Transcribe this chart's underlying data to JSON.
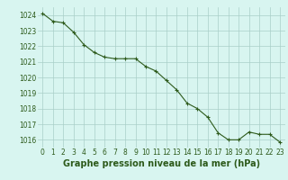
{
  "x": [
    0,
    1,
    2,
    3,
    4,
    5,
    6,
    7,
    8,
    9,
    10,
    11,
    12,
    13,
    14,
    15,
    16,
    17,
    18,
    19,
    20,
    21,
    22,
    23
  ],
  "y": [
    1024.1,
    1023.6,
    1023.5,
    1022.9,
    1022.1,
    1021.6,
    1021.3,
    1021.2,
    1021.2,
    1021.2,
    1020.7,
    1020.4,
    1019.8,
    1019.2,
    1018.35,
    1018.0,
    1017.45,
    1016.45,
    1016.0,
    1016.0,
    1016.5,
    1016.35,
    1016.35,
    1015.85
  ],
  "line_color": "#2d5a1b",
  "marker": "+",
  "marker_color": "#2d5a1b",
  "bg_color": "#d8f5f0",
  "grid_color": "#aacfc8",
  "tick_label_color": "#2d5a1b",
  "xlabel": "Graphe pression niveau de la mer (hPa)",
  "xlabel_color": "#2d5a1b",
  "xlabel_fontsize": 7.0,
  "ylim": [
    1015.5,
    1024.5
  ],
  "yticks": [
    1016,
    1017,
    1018,
    1019,
    1020,
    1021,
    1022,
    1023,
    1024
  ],
  "xticks": [
    0,
    1,
    2,
    3,
    4,
    5,
    6,
    7,
    8,
    9,
    10,
    11,
    12,
    13,
    14,
    15,
    16,
    17,
    18,
    19,
    20,
    21,
    22,
    23
  ],
  "tick_fontsize": 5.5,
  "linewidth": 0.8,
  "markersize": 3.5
}
